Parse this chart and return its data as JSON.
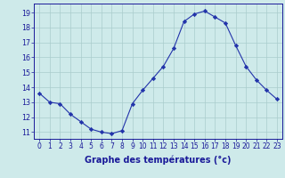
{
  "hours": [
    0,
    1,
    2,
    3,
    4,
    5,
    6,
    7,
    8,
    9,
    10,
    11,
    12,
    13,
    14,
    15,
    16,
    17,
    18,
    19,
    20,
    21,
    22,
    23
  ],
  "temps": [
    13.6,
    13.0,
    12.9,
    12.2,
    11.7,
    11.2,
    11.0,
    10.9,
    11.1,
    12.9,
    13.8,
    14.6,
    15.4,
    16.6,
    18.4,
    18.9,
    19.1,
    18.7,
    18.3,
    16.8,
    15.4,
    14.5,
    13.8,
    13.2
  ],
  "line_color": "#2233aa",
  "marker": "D",
  "marker_size": 2.2,
  "bg_color": "#ceeaea",
  "grid_color": "#aacccc",
  "xlabel": "Graphe des températures (°c)",
  "xlabel_color": "#1a1a99",
  "ylabel_ticks": [
    11,
    12,
    13,
    14,
    15,
    16,
    17,
    18,
    19
  ],
  "xtick_labels": [
    "0",
    "1",
    "2",
    "3",
    "4",
    "5",
    "6",
    "7",
    "8",
    "9",
    "10",
    "11",
    "12",
    "13",
    "14",
    "15",
    "16",
    "17",
    "18",
    "19",
    "20",
    "21",
    "22",
    "23"
  ],
  "xlim": [
    -0.5,
    23.5
  ],
  "ylim": [
    10.55,
    19.6
  ],
  "tick_color": "#1a1a99",
  "spine_color": "#1a1a99",
  "xlabel_fontsize": 7.0,
  "tick_fontsize": 5.5
}
